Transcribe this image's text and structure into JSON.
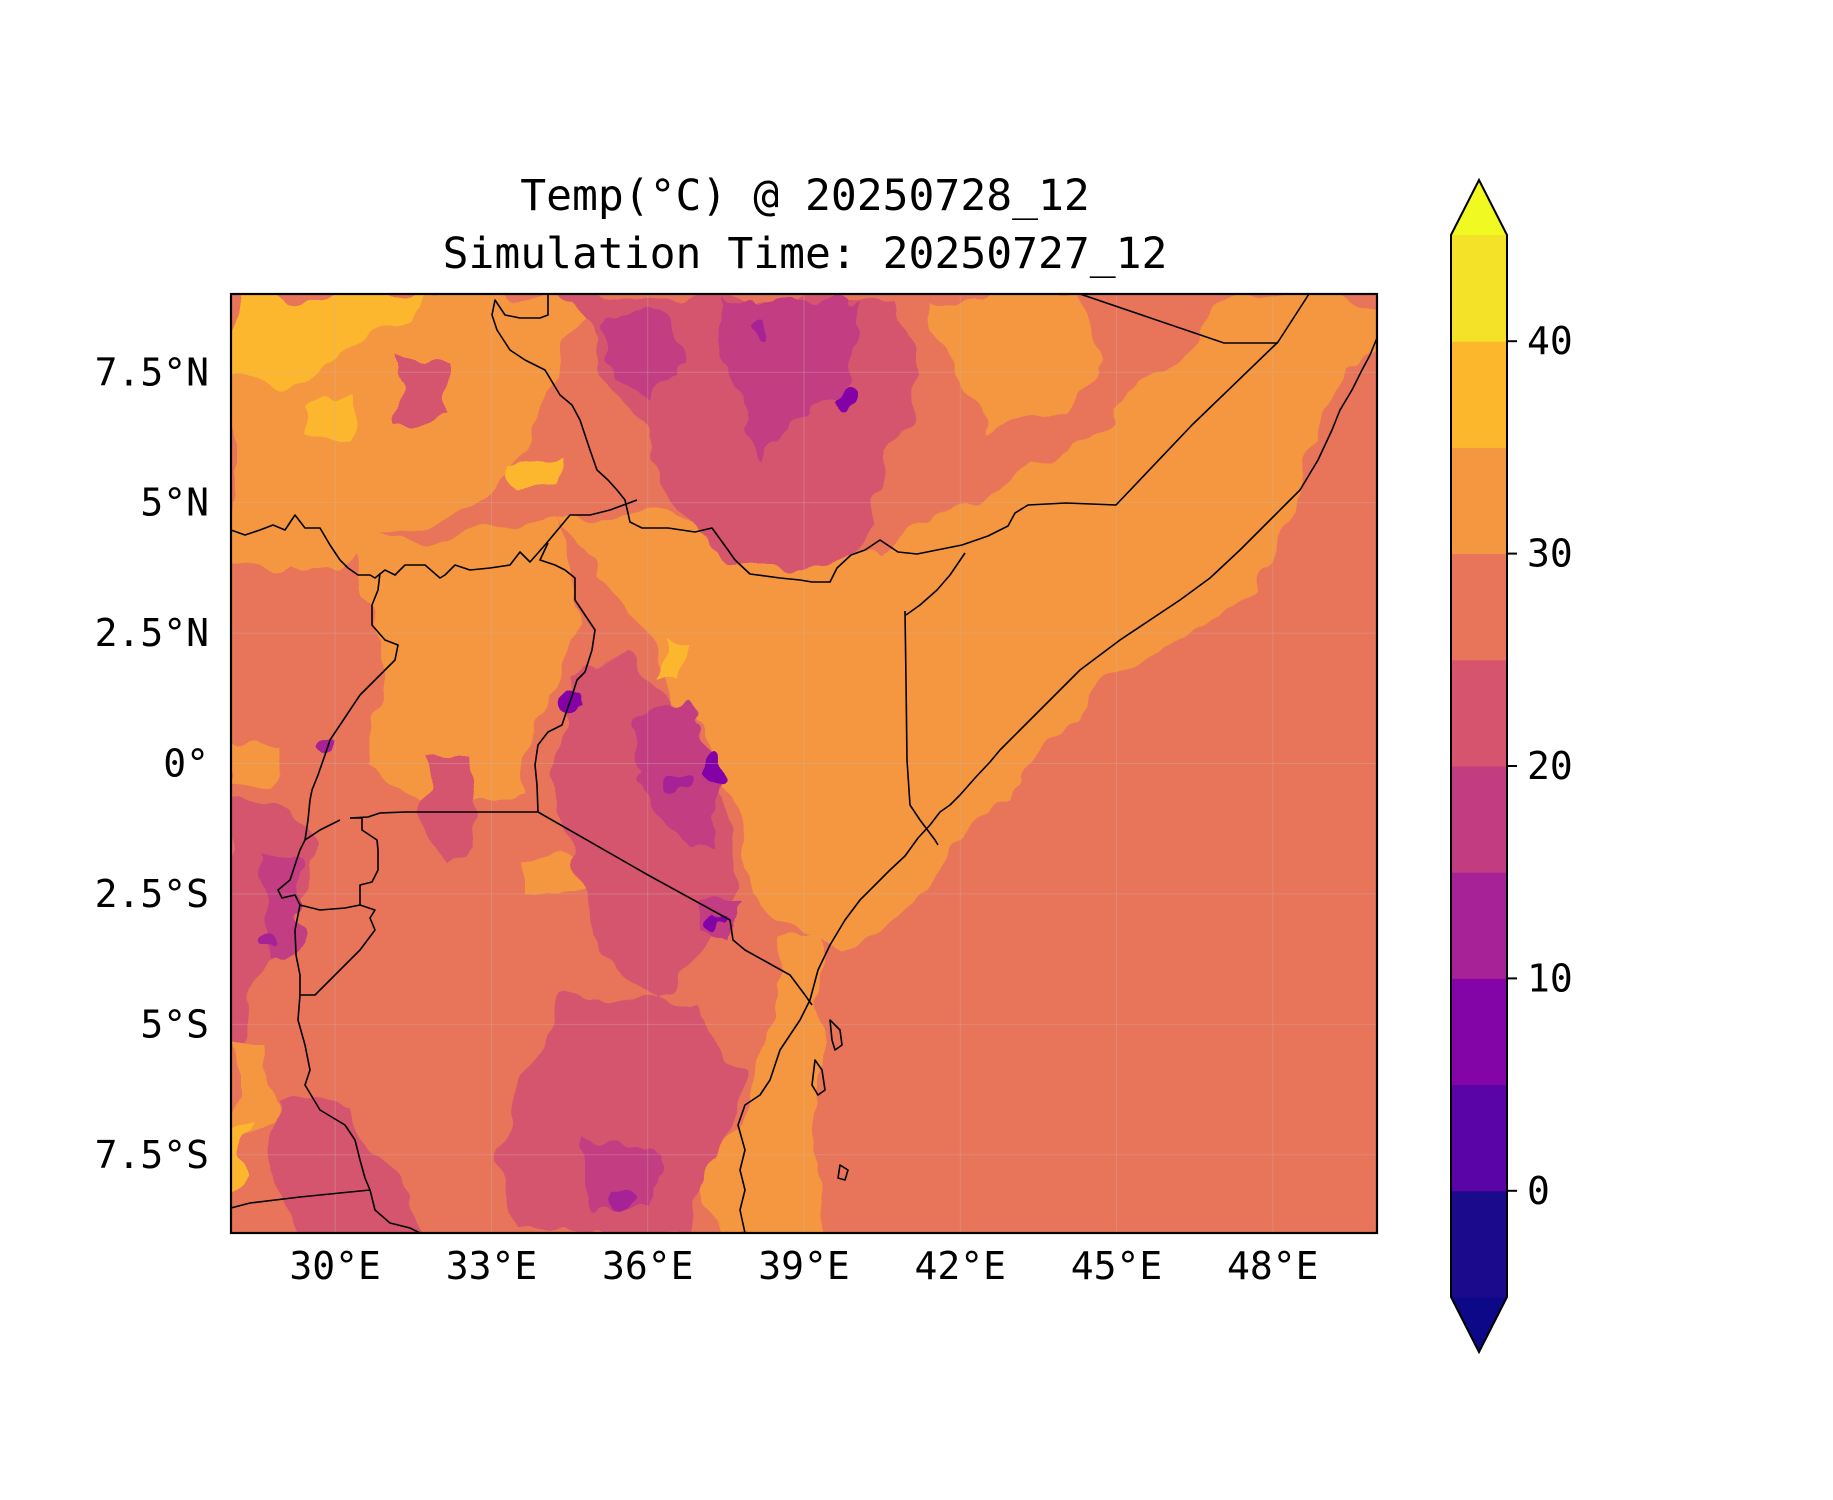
{
  "title": {
    "line1": "Temp(°C) @ 20250728_12",
    "line2": "Simulation Time: 20250727_12"
  },
  "map": {
    "lon_range": [
      28,
      50
    ],
    "lat_range": [
      -9,
      9
    ],
    "x_ticks": [
      {
        "value": 30,
        "label": "30°E"
      },
      {
        "value": 33,
        "label": "33°E"
      },
      {
        "value": 36,
        "label": "36°E"
      },
      {
        "value": 39,
        "label": "39°E"
      },
      {
        "value": 42,
        "label": "42°E"
      },
      {
        "value": 45,
        "label": "45°E"
      },
      {
        "value": 48,
        "label": "48°E"
      }
    ],
    "y_ticks": [
      {
        "value": 7.5,
        "label": "7.5°N"
      },
      {
        "value": 5,
        "label": "5°N"
      },
      {
        "value": 2.5,
        "label": "2.5°N"
      },
      {
        "value": 0,
        "label": "0°"
      },
      {
        "value": -2.5,
        "label": "2.5°S"
      },
      {
        "value": -5,
        "label": "5°S"
      },
      {
        "value": -7.5,
        "label": "7.5°S"
      }
    ],
    "gridlines": true
  },
  "colorbar": {
    "range": [
      -5,
      45
    ],
    "extend": "both",
    "levels": [
      {
        "from": -5,
        "to": 0,
        "color": "#1c0a8c"
      },
      {
        "from": 0,
        "to": 5,
        "color": "#5a03a6"
      },
      {
        "from": 5,
        "to": 10,
        "color": "#8405a7"
      },
      {
        "from": 10,
        "to": 15,
        "color": "#a62296"
      },
      {
        "from": 15,
        "to": 20,
        "color": "#c23c81"
      },
      {
        "from": 20,
        "to": 25,
        "color": "#d6546e"
      },
      {
        "from": 25,
        "to": 30,
        "color": "#e8745a"
      },
      {
        "from": 30,
        "to": 35,
        "color": "#f59741"
      },
      {
        "from": 35,
        "to": 40,
        "color": "#fdb72d"
      },
      {
        "from": 40,
        "to": 45,
        "color": "#f3e228"
      }
    ],
    "under_color": "#0d0887",
    "over_color": "#f0f921",
    "ticks": [
      {
        "value": 0,
        "label": "0"
      },
      {
        "value": 10,
        "label": "10"
      },
      {
        "value": 20,
        "label": "20"
      },
      {
        "value": 30,
        "label": "30"
      },
      {
        "value": 40,
        "label": "40"
      }
    ]
  }
}
